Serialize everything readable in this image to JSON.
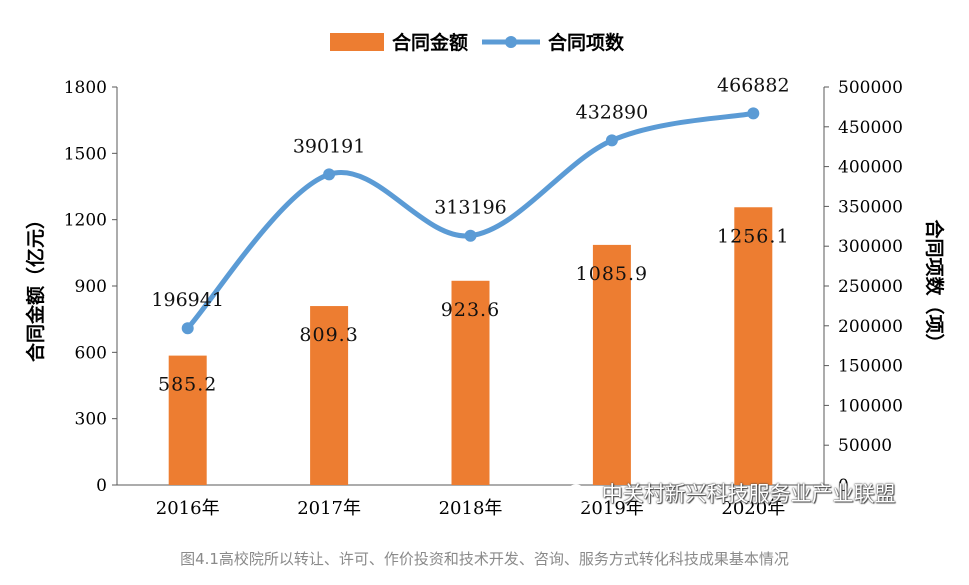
{
  "chart_data": {
    "type": "bar+line",
    "categories": [
      "2016年",
      "2017年",
      "2018年",
      "2019年",
      "2020年"
    ],
    "series": [
      {
        "name": "合同金额",
        "type": "bar",
        "axis": "left",
        "values": [
          585.2,
          809.3,
          923.6,
          1085.9,
          1256.1
        ],
        "labels": [
          "585.2",
          "809.3",
          "923.6",
          "1085.9",
          "1256.1"
        ],
        "color": "#ED7D31"
      },
      {
        "name": "合同项数",
        "type": "line",
        "axis": "right",
        "values": [
          196941,
          390191,
          313196,
          432890,
          466882
        ],
        "labels": [
          "196941",
          "390191",
          "313196",
          "432890",
          "466882"
        ],
        "color": "#5B9BD5"
      }
    ],
    "ylabel_left": "合同金额（亿元）",
    "ylabel_right": "合同项数（项）",
    "ylim_left": [
      0,
      1800
    ],
    "ylim_right": [
      0,
      500000
    ],
    "yticks_left": [
      "0",
      "300",
      "600",
      "900",
      "1200",
      "1500",
      "1800"
    ],
    "yticks_right": [
      "0",
      "50000",
      "100000",
      "150000",
      "200000",
      "250000",
      "300000",
      "350000",
      "400000",
      "450000",
      "500000"
    ],
    "legend": "top-center",
    "grid": false
  },
  "caption": "图4.1高校院所以转让、许可、作价投资和技术开发、咨询、服务方式转化科技成果基本情况",
  "watermark": {
    "text": "中关村新兴科技服务业产业联盟",
    "icon": "wechat-icon"
  }
}
